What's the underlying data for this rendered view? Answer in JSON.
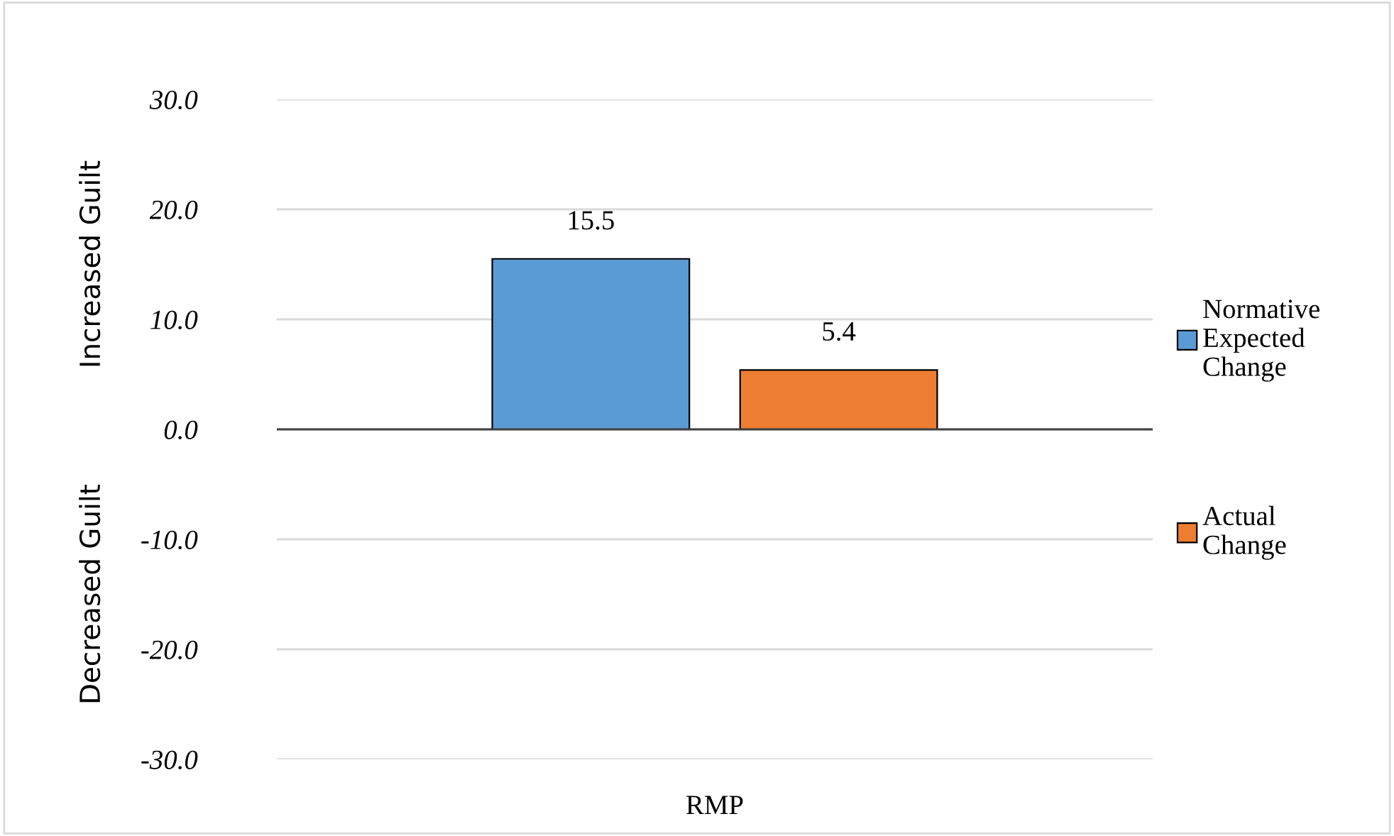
{
  "chart_data": {
    "type": "bar",
    "categories": [
      "RMP"
    ],
    "series": [
      {
        "name": "Normative Expected Change",
        "color": "#5b9bd5",
        "values": [
          15.5
        ]
      },
      {
        "name": "Actual Change",
        "color": "#ed7d31",
        "values": [
          5.4
        ]
      }
    ],
    "ylim": [
      -30,
      30
    ],
    "yticks": [
      {
        "value": -30,
        "label": "-30.0"
      },
      {
        "value": -20,
        "label": "-20.0"
      },
      {
        "value": -10,
        "label": "-10.0"
      },
      {
        "value": 0,
        "label": "0.0"
      },
      {
        "value": 10,
        "label": "10.0"
      },
      {
        "value": 20,
        "label": "20.0"
      },
      {
        "value": 30,
        "label": "30.0"
      }
    ],
    "annotations": [
      "Increased Guilt",
      "Decreased Guilt"
    ],
    "grid": "y",
    "legend": "right",
    "data_labels": true
  }
}
